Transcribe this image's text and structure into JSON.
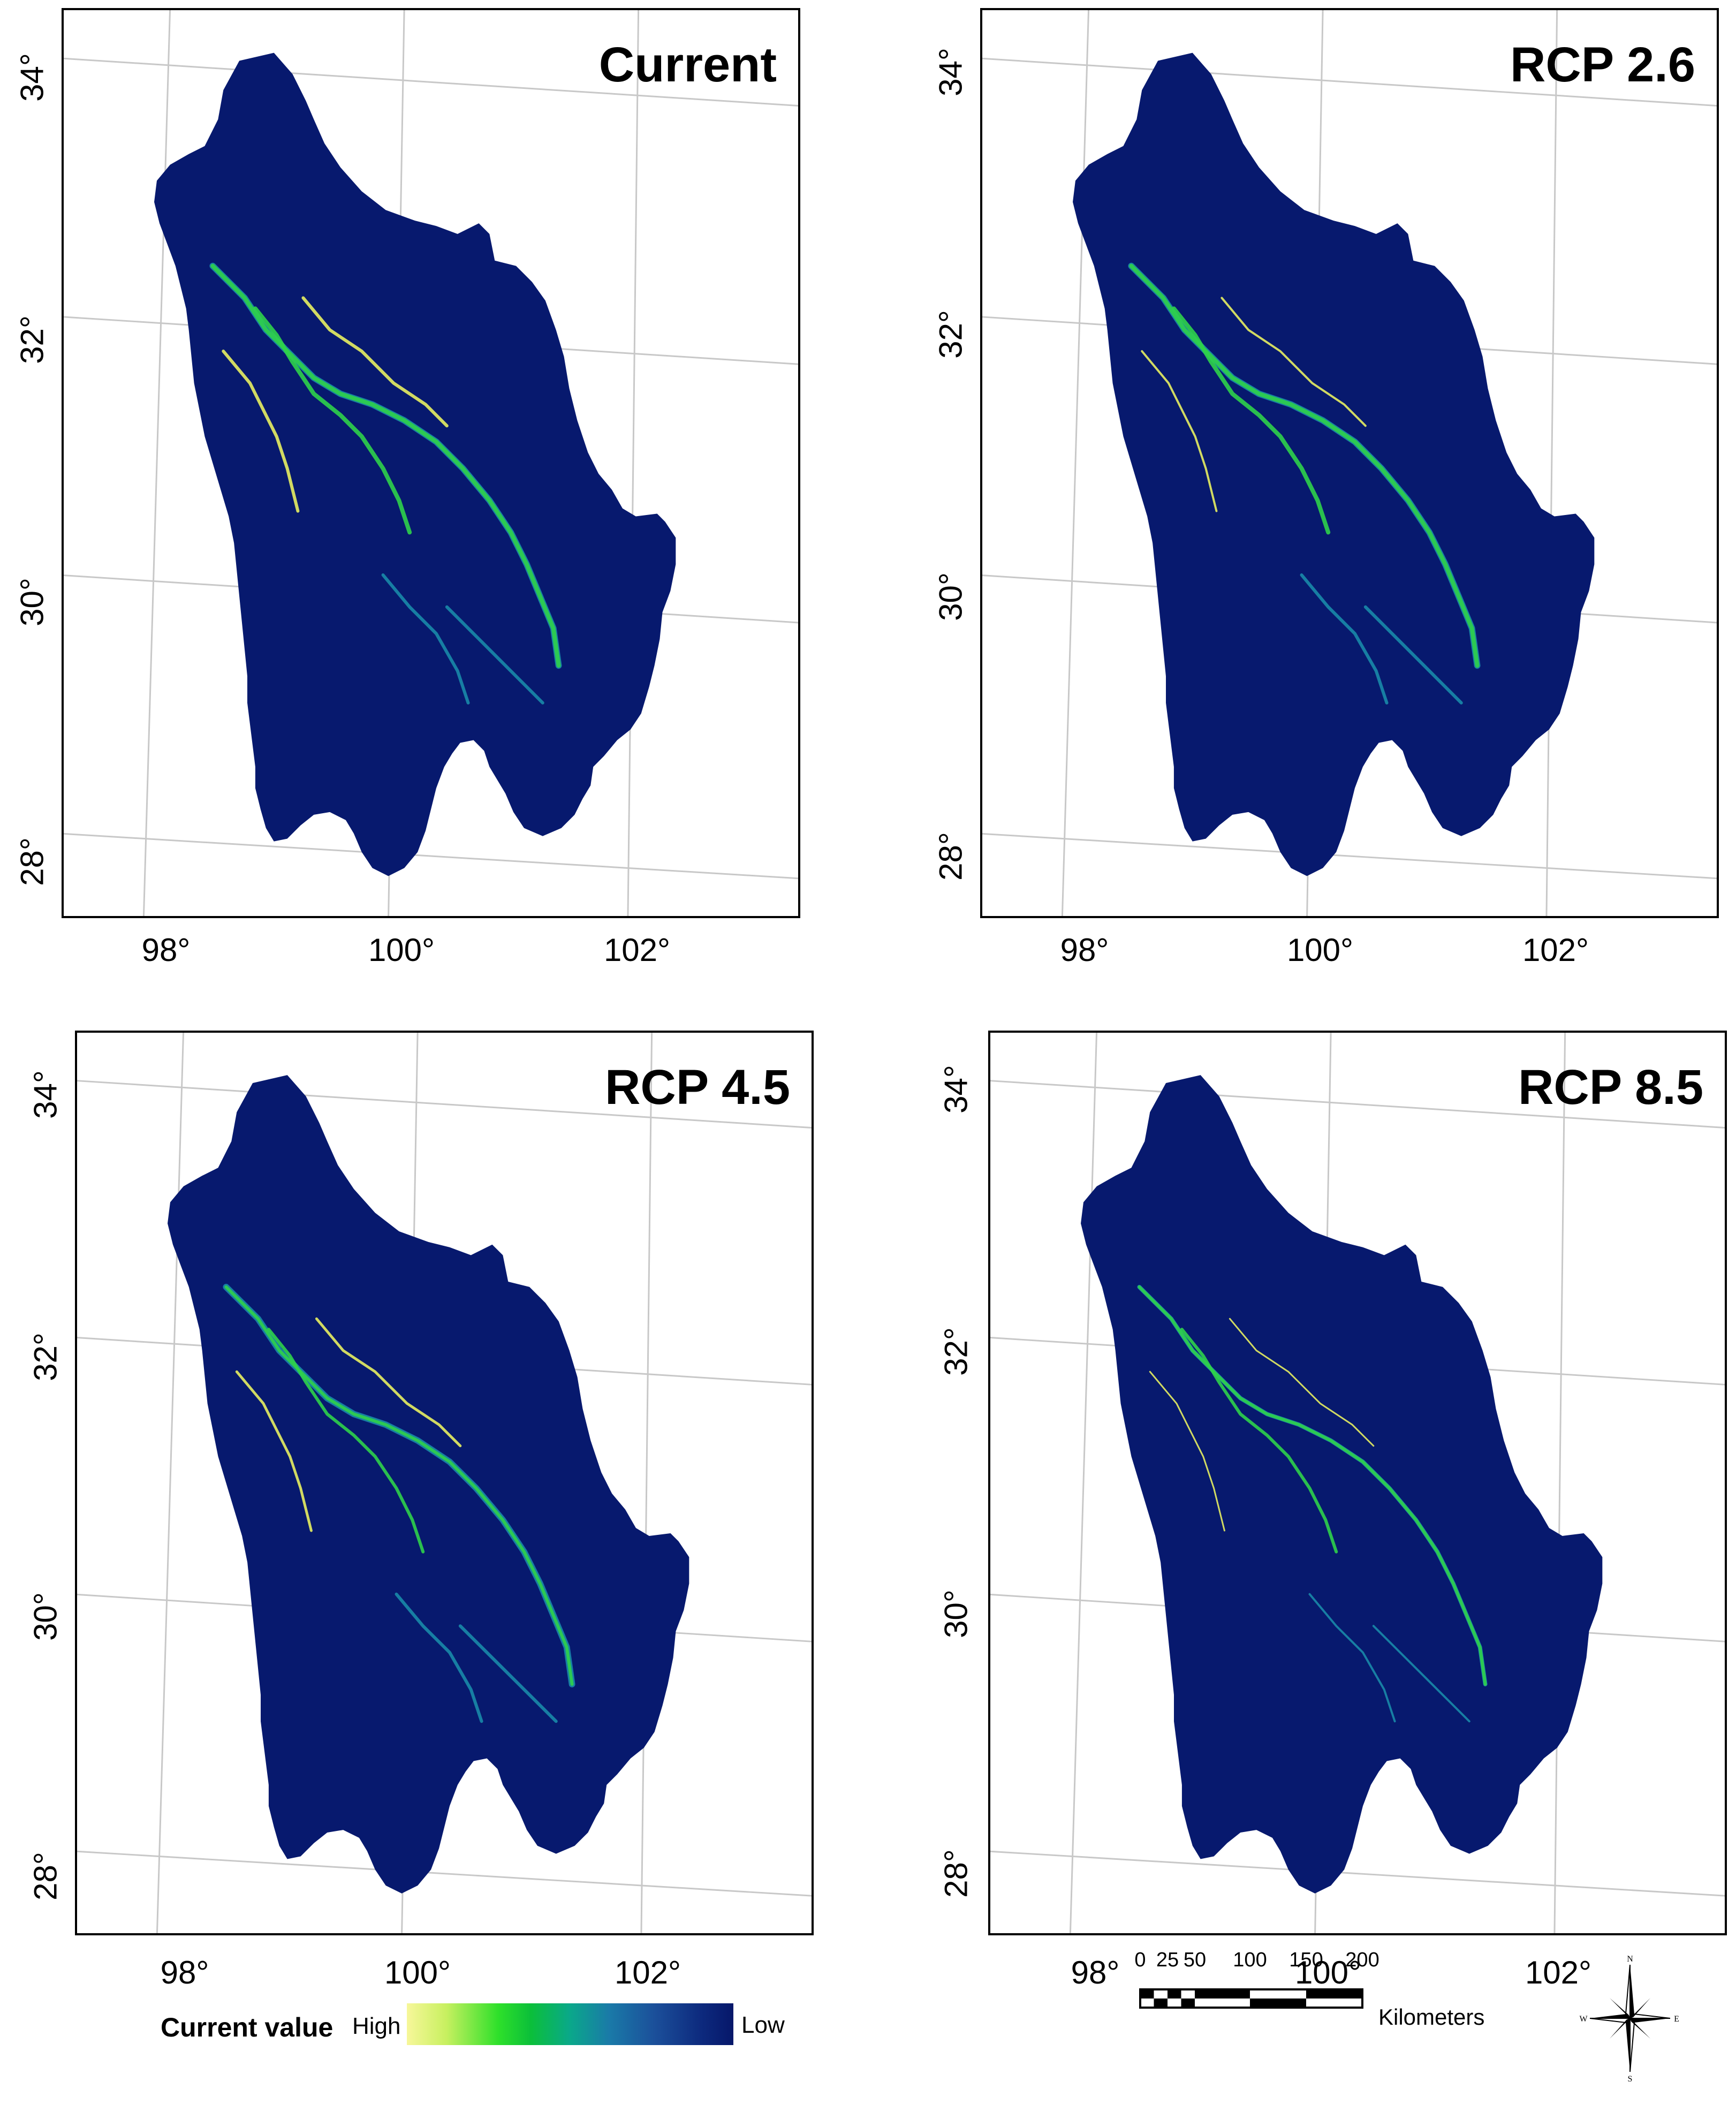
{
  "panels": [
    {
      "title": "Current"
    },
    {
      "title": "RCP 2.6"
    },
    {
      "title": "RCP 4.5"
    },
    {
      "title": "RCP 8.5"
    }
  ],
  "lat_labels": [
    "34°",
    "32°",
    "30°",
    "28°"
  ],
  "lon_labels": [
    "98°",
    "100°",
    "102°"
  ],
  "legend": {
    "title": "Current value",
    "high": "High",
    "low": "Low",
    "colors": [
      "#f7f79a",
      "#2ee02a",
      "#0aa88a",
      "#1b4f9a",
      "#06176a"
    ]
  },
  "scalebar": {
    "ticks": [
      "0",
      "25",
      "50",
      "100",
      "150",
      "200"
    ],
    "unit": "Kilometers"
  },
  "north_arrow": {
    "n": "N",
    "e": "E",
    "s": "S",
    "w": "W",
    "icon": "compass-rose-icon"
  },
  "map_colors": {
    "region": "#07196e",
    "corridor_bright": "#e8f060",
    "corridor_mid": "#2fd24a",
    "corridor_dim": "#1a8aa8"
  }
}
